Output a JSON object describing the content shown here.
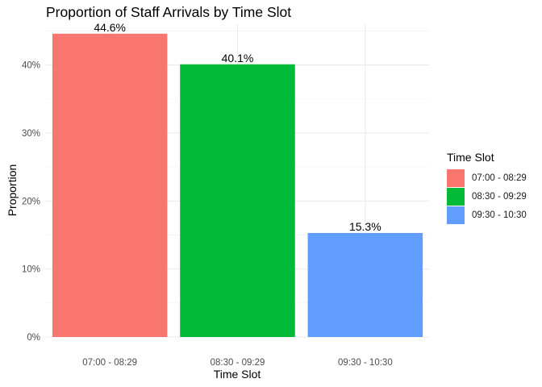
{
  "chart_data": {
    "type": "bar",
    "title": "Proportion of Staff Arrivals by Time Slot",
    "xlabel": "Time Slot",
    "ylabel": "Proportion",
    "categories": [
      "07:00 - 08:29",
      "08:30 - 09:29",
      "09:30 - 10:30"
    ],
    "values": [
      0.446,
      0.401,
      0.153
    ],
    "data_labels": [
      "44.6%",
      "40.1%",
      "15.3%"
    ],
    "colors": [
      "#F8766D",
      "#00BA38",
      "#619CFF"
    ],
    "ylim": [
      0,
      0.46
    ],
    "yticks": [
      0,
      0.1,
      0.2,
      0.3,
      0.4
    ],
    "ytick_labels": [
      "0%",
      "10%",
      "20%",
      "30%",
      "40%"
    ],
    "grid": true,
    "legend": {
      "title": "Time Slot",
      "position": "right",
      "entries": [
        "07:00 - 08:29",
        "08:30 - 09:29",
        "09:30 - 10:30"
      ]
    }
  }
}
